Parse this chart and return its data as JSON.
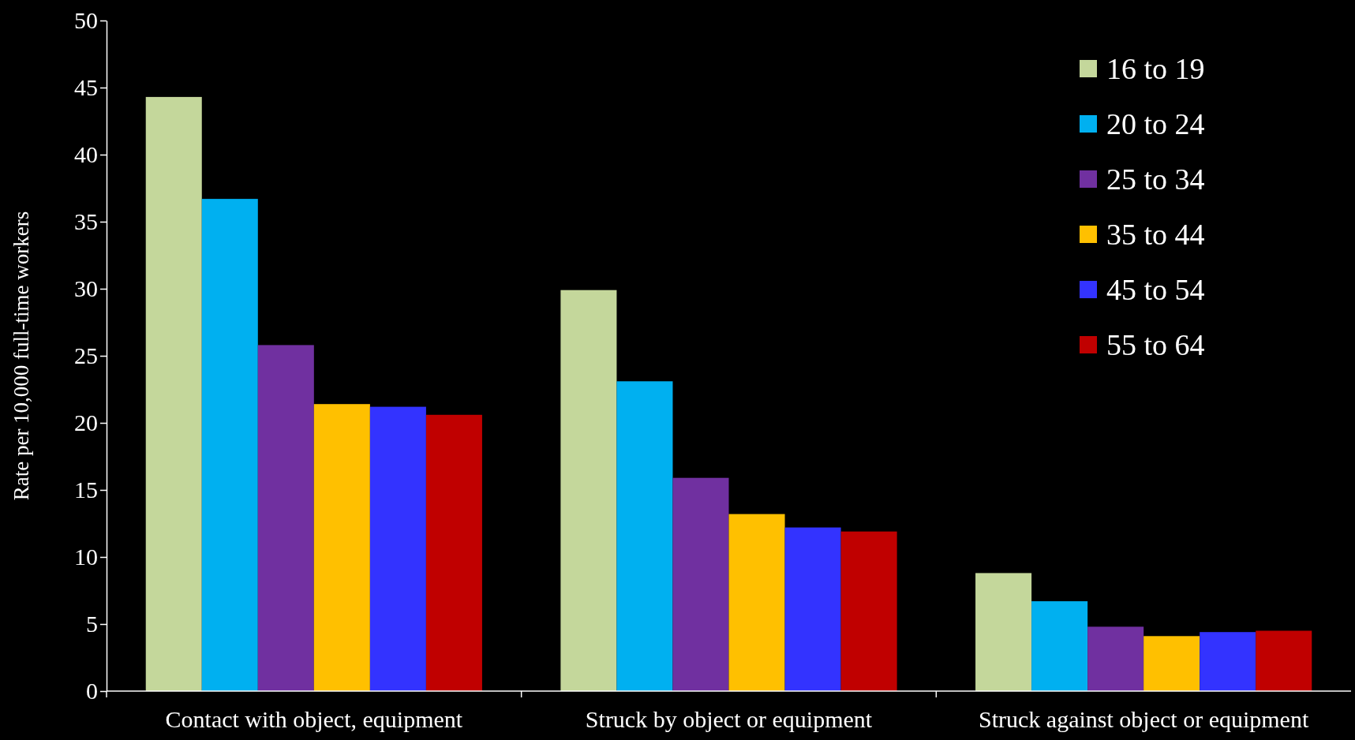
{
  "chart_data": {
    "type": "bar",
    "ylabel": "Rate per 10,000 full-time workers",
    "categories": [
      "Contact with object, equipment",
      "Struck by object or equipment",
      "Struck against object or equipment"
    ],
    "series": [
      {
        "name": "16 to 19",
        "color": "#c4d79b",
        "values": [
          44.3,
          29.9,
          8.8
        ]
      },
      {
        "name": "20 to 24",
        "color": "#00b0f0",
        "values": [
          36.7,
          23.1,
          6.7
        ]
      },
      {
        "name": "25 to 34",
        "color": "#7030a0",
        "values": [
          25.8,
          15.9,
          4.8
        ]
      },
      {
        "name": "35 to 44",
        "color": "#ffc000",
        "values": [
          21.4,
          13.2,
          4.1
        ]
      },
      {
        "name": "45 to 54",
        "color": "#3333ff",
        "values": [
          21.2,
          12.2,
          4.4
        ]
      },
      {
        "name": "55 to 64",
        "color": "#c00000",
        "values": [
          20.6,
          11.9,
          4.5
        ]
      }
    ],
    "ylim": [
      0,
      50
    ],
    "yticks": [
      0,
      5,
      10,
      15,
      20,
      25,
      30,
      35,
      40,
      45,
      50
    ],
    "grid": false,
    "legend": "top right"
  }
}
